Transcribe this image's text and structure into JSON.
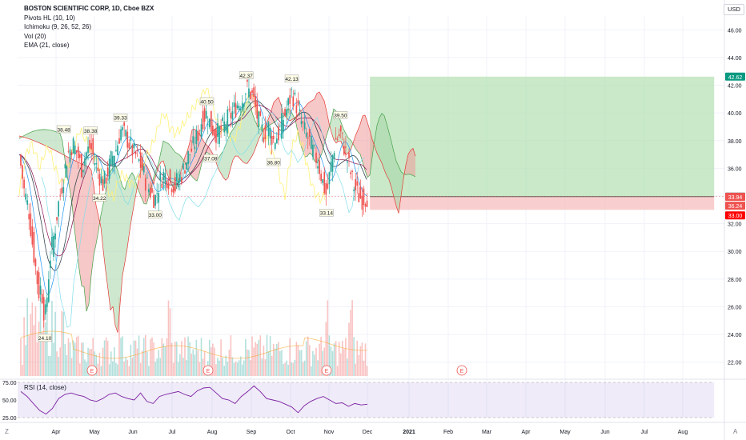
{
  "header": {
    "title": "BOSTON SCIENTIFIC CORP, 1D, Cboe BZX",
    "indicators": [
      "Pivots HL (10, 10)",
      "Ichimoku (9, 26, 52, 26)",
      "Vol (20)",
      "EMA (21, close)"
    ],
    "currency": "USD"
  },
  "rsi_panel": {
    "label": "RSI (14, close)",
    "ticks": [
      "75.00",
      "50.00",
      "25.00"
    ]
  },
  "footer": {
    "z_button": "Z",
    "a_button": "A"
  },
  "colors": {
    "up": "#26a69a",
    "down": "#ef5350",
    "ema": "#f7a21b",
    "tenkan": "#2196f3",
    "kijun": "#e91e63",
    "chikou": "#4caf50",
    "cloud_up": "#a5d6a7",
    "cloud_down": "#ef9a9a",
    "rsi": "#7e57c2",
    "target": "#b2dfb0",
    "stop": "#f8c2c2"
  },
  "chart_data": {
    "type": "candlestick",
    "title": "BOSTON SCIENTIFIC CORP, 1D, Cboe BZX",
    "ylim": [
      21,
      47
    ],
    "y_ticks": [
      22,
      24,
      26,
      28,
      30,
      32,
      34,
      36,
      38,
      40,
      42,
      44,
      46
    ],
    "x_ticks": [
      "Apr",
      "May",
      "Jun",
      "Jul",
      "Aug",
      "Sep",
      "Oct",
      "Nov",
      "Dec",
      "2021",
      "Feb",
      "Mar",
      "Apr",
      "May",
      "Jun",
      "Jul",
      "Aug"
    ],
    "close_series": [
      {
        "date": "Mar 02",
        "value": 37.0
      },
      {
        "date": "Mar 04",
        "value": 36.0
      },
      {
        "date": "Mar 06",
        "value": 34.5
      },
      {
        "date": "Mar 10",
        "value": 33.0
      },
      {
        "date": "Mar 13",
        "value": 30.5
      },
      {
        "date": "Mar 16",
        "value": 28.5
      },
      {
        "date": "Mar 18",
        "value": 27.0
      },
      {
        "date": "Mar 20",
        "value": 27.5
      },
      {
        "date": "Mar 23",
        "value": 25.0
      },
      {
        "date": "Mar 25",
        "value": 27.0
      },
      {
        "date": "Mar 27",
        "value": 29.5
      },
      {
        "date": "Mar 31",
        "value": 31.5
      },
      {
        "date": "Apr 03",
        "value": 33.5
      },
      {
        "date": "Apr 07",
        "value": 35.5
      },
      {
        "date": "Apr 10",
        "value": 37.0
      },
      {
        "date": "Apr 14",
        "value": 37.8
      },
      {
        "date": "Apr 17",
        "value": 37.2
      },
      {
        "date": "Apr 21",
        "value": 36.0
      },
      {
        "date": "Apr 24",
        "value": 37.0
      },
      {
        "date": "Apr 28",
        "value": 37.6
      },
      {
        "date": "May 01",
        "value": 36.5
      },
      {
        "date": "May 05",
        "value": 35.5
      },
      {
        "date": "May 08",
        "value": 34.8
      },
      {
        "date": "May 12",
        "value": 35.8
      },
      {
        "date": "May 15",
        "value": 36.8
      },
      {
        "date": "May 19",
        "value": 37.5
      },
      {
        "date": "May 22",
        "value": 38.8
      },
      {
        "date": "May 27",
        "value": 38.2
      },
      {
        "date": "Jun 01",
        "value": 37.2
      },
      {
        "date": "Jun 04",
        "value": 36.8
      },
      {
        "date": "Jun 08",
        "value": 36.0
      },
      {
        "date": "Jun 11",
        "value": 35.0
      },
      {
        "date": "Jun 15",
        "value": 34.2
      },
      {
        "date": "Jun 18",
        "value": 33.8
      },
      {
        "date": "Jun 22",
        "value": 35.2
      },
      {
        "date": "Jun 25",
        "value": 35.6
      },
      {
        "date": "Jun 30",
        "value": 35.0
      },
      {
        "date": "Jul 03",
        "value": 34.8
      },
      {
        "date": "Jul 08",
        "value": 35.5
      },
      {
        "date": "Jul 13",
        "value": 36.8
      },
      {
        "date": "Jul 17",
        "value": 37.5
      },
      {
        "date": "Jul 21",
        "value": 38.5
      },
      {
        "date": "Jul 24",
        "value": 39.5
      },
      {
        "date": "Jul 28",
        "value": 40.0
      },
      {
        "date": "Jul 31",
        "value": 39.0
      },
      {
        "date": "Aug 05",
        "value": 38.5
      },
      {
        "date": "Aug 10",
        "value": 39.0
      },
      {
        "date": "Aug 13",
        "value": 39.5
      },
      {
        "date": "Aug 17",
        "value": 40.0
      },
      {
        "date": "Aug 20",
        "value": 40.5
      },
      {
        "date": "Aug 25",
        "value": 41.0
      },
      {
        "date": "Aug 28",
        "value": 41.8
      },
      {
        "date": "Sep 02",
        "value": 41.2
      },
      {
        "date": "Sep 06",
        "value": 39.5
      },
      {
        "date": "Sep 10",
        "value": 38.5
      },
      {
        "date": "Sep 14",
        "value": 39.0
      },
      {
        "date": "Sep 18",
        "value": 38.0
      },
      {
        "date": "Sep 22",
        "value": 38.5
      },
      {
        "date": "Sep 25",
        "value": 39.5
      },
      {
        "date": "Sep 29",
        "value": 40.5
      },
      {
        "date": "Oct 02",
        "value": 41.5
      },
      {
        "date": "Oct 06",
        "value": 40.5
      },
      {
        "date": "Oct 09",
        "value": 39.5
      },
      {
        "date": "Oct 13",
        "value": 38.5
      },
      {
        "date": "Oct 16",
        "value": 38.0
      },
      {
        "date": "Oct 20",
        "value": 37.0
      },
      {
        "date": "Oct 23",
        "value": 36.5
      },
      {
        "date": "Oct 27",
        "value": 35.0
      },
      {
        "date": "Oct 30",
        "value": 34.0
      },
      {
        "date": "Nov 03",
        "value": 36.5
      },
      {
        "date": "Nov 06",
        "value": 38.0
      },
      {
        "date": "Nov 10",
        "value": 38.5
      },
      {
        "date": "Nov 13",
        "value": 37.5
      },
      {
        "date": "Nov 17",
        "value": 36.0
      },
      {
        "date": "Nov 20",
        "value": 34.8
      },
      {
        "date": "Nov 24",
        "value": 34.0
      },
      {
        "date": "Nov 27",
        "value": 33.8
      },
      {
        "date": "Dec 01",
        "value": 34.0
      }
    ],
    "pivot_labels": [
      {
        "text": "38.48",
        "date": "Apr 07",
        "price": 38.48,
        "kind": "high"
      },
      {
        "text": "38.38",
        "date": "Apr 28",
        "price": 38.38,
        "kind": "high"
      },
      {
        "text": "39.33",
        "date": "May 22",
        "price": 39.33,
        "kind": "high"
      },
      {
        "text": "40.50",
        "date": "Jul 28",
        "price": 40.5,
        "kind": "high"
      },
      {
        "text": "42.37",
        "date": "Aug 28",
        "price": 42.37,
        "kind": "high"
      },
      {
        "text": "42.13",
        "date": "Oct 02",
        "price": 42.13,
        "kind": "high"
      },
      {
        "text": "39.50",
        "date": "Nov 10",
        "price": 39.5,
        "kind": "high"
      },
      {
        "text": "24.10",
        "date": "Mar 23",
        "price": 24.1,
        "kind": "low"
      },
      {
        "text": "34.22",
        "date": "May 05",
        "price": 34.22,
        "kind": "low"
      },
      {
        "text": "33.00",
        "date": "Jun 18",
        "price": 33.0,
        "kind": "low"
      },
      {
        "text": "37.08",
        "date": "Jul 31",
        "price": 37.08,
        "kind": "low"
      },
      {
        "text": "36.80",
        "date": "Sep 18",
        "price": 36.8,
        "kind": "low"
      },
      {
        "text": "33.14",
        "date": "Oct 30",
        "price": 33.14,
        "kind": "low"
      }
    ],
    "price_tags": [
      {
        "text": "42.62",
        "price": 42.62,
        "color": "#089981"
      },
      {
        "text": "33.96",
        "price": 33.96,
        "color": "#5d606b"
      },
      {
        "text": "33.94",
        "price": 33.94,
        "color": "#ef5350"
      },
      {
        "text": "36.24",
        "price": 33.3,
        "color": "#ef5350"
      },
      {
        "text": "33.00",
        "price": 32.6,
        "color": "#ff0000"
      }
    ],
    "position": {
      "entry": 33.96,
      "target": 42.62,
      "stop": 33.0,
      "start_date": "Dec 03",
      "end_date": "Aug 25 2021"
    },
    "earnings_markers": [
      "Apr",
      "Jul",
      "Oct",
      "Feb"
    ],
    "earnings_glyph": "E",
    "rsi": {
      "ylim": [
        25,
        75
      ],
      "values": [
        62,
        55,
        45,
        35,
        30,
        38,
        52,
        58,
        60,
        57,
        55,
        50,
        48,
        52,
        58,
        60,
        55,
        52,
        50,
        60,
        48,
        45,
        55,
        58,
        60,
        62,
        58,
        55,
        63,
        67,
        68,
        60,
        52,
        50,
        45,
        55,
        62,
        70,
        62,
        52,
        50,
        48,
        44,
        40,
        32,
        42,
        48,
        52,
        55,
        50,
        45,
        46,
        41,
        45,
        43,
        44
      ]
    }
  }
}
